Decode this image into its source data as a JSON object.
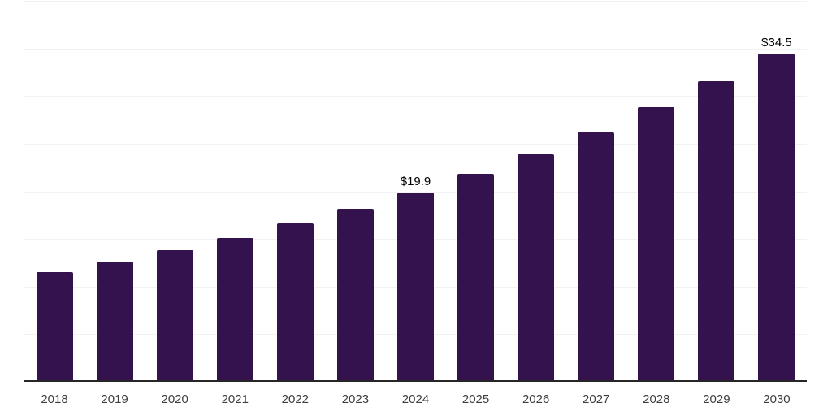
{
  "chart_data": {
    "type": "bar",
    "title": "",
    "xlabel": "",
    "ylabel": "",
    "categories": [
      "2018",
      "2019",
      "2020",
      "2021",
      "2022",
      "2023",
      "2024",
      "2025",
      "2026",
      "2027",
      "2028",
      "2029",
      "2030"
    ],
    "values": [
      11.5,
      12.6,
      13.8,
      15.1,
      16.6,
      18.2,
      19.9,
      21.8,
      23.9,
      26.2,
      28.8,
      31.6,
      34.5
    ],
    "value_labels": {
      "2024": "$19.9",
      "2030": "$34.5"
    },
    "ylim": [
      0,
      40
    ],
    "gridline_step": 5,
    "grid": true,
    "legend": "none",
    "colors": {
      "bar": "#34124E",
      "gridline": "#f2f2f2",
      "axis_line": "#262626",
      "tick_label": "#3d3d3d",
      "value_label": "#000000",
      "background": "#ffffff"
    }
  }
}
